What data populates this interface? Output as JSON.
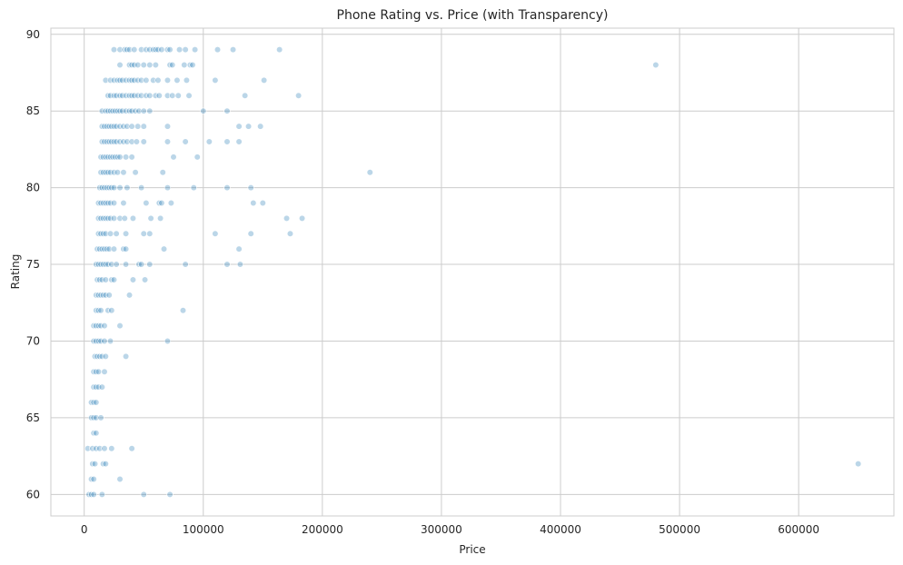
{
  "chart_data": {
    "type": "scatter",
    "title": "Phone Rating vs. Price (with Transparency)",
    "xlabel": "Price",
    "ylabel": "Rating",
    "xlim": [
      -28000,
      680000
    ],
    "ylim": [
      58.6,
      90.4
    ],
    "xticks": [
      0,
      100000,
      200000,
      300000,
      400000,
      500000,
      600000
    ],
    "xtick_labels": [
      "0",
      "100000",
      "200000",
      "300000",
      "400000",
      "500000",
      "600000"
    ],
    "yticks": [
      60,
      65,
      70,
      75,
      80,
      85,
      90
    ],
    "ytick_labels": [
      "60",
      "65",
      "70",
      "75",
      "80",
      "85",
      "90"
    ],
    "grid": true,
    "point_color": "#1f77b4",
    "point_alpha": 0.3,
    "points": [
      [
        25000,
        89
      ],
      [
        30000,
        89
      ],
      [
        34000,
        89
      ],
      [
        36000,
        89
      ],
      [
        38000,
        89
      ],
      [
        42000,
        89
      ],
      [
        48000,
        89
      ],
      [
        52000,
        89
      ],
      [
        55000,
        89
      ],
      [
        58000,
        89
      ],
      [
        60000,
        89
      ],
      [
        62000,
        89
      ],
      [
        65000,
        89
      ],
      [
        70000,
        89
      ],
      [
        72000,
        89
      ],
      [
        80000,
        89
      ],
      [
        85000,
        89
      ],
      [
        93000,
        89
      ],
      [
        112000,
        89
      ],
      [
        125000,
        89
      ],
      [
        164000,
        89
      ],
      [
        30000,
        88
      ],
      [
        38000,
        88
      ],
      [
        40000,
        88
      ],
      [
        42000,
        88
      ],
      [
        45000,
        88
      ],
      [
        50000,
        88
      ],
      [
        55000,
        88
      ],
      [
        60000,
        88
      ],
      [
        72000,
        88
      ],
      [
        74000,
        88
      ],
      [
        84000,
        88
      ],
      [
        89000,
        88
      ],
      [
        91000,
        88
      ],
      [
        480000,
        88
      ],
      [
        18000,
        87
      ],
      [
        22000,
        87
      ],
      [
        25000,
        87
      ],
      [
        28000,
        87
      ],
      [
        30000,
        87
      ],
      [
        32000,
        87
      ],
      [
        35000,
        87
      ],
      [
        38000,
        87
      ],
      [
        40000,
        87
      ],
      [
        42000,
        87
      ],
      [
        45000,
        87
      ],
      [
        48000,
        87
      ],
      [
        52000,
        87
      ],
      [
        58000,
        87
      ],
      [
        62000,
        87
      ],
      [
        70000,
        87
      ],
      [
        78000,
        87
      ],
      [
        86000,
        87
      ],
      [
        110000,
        87
      ],
      [
        151000,
        87
      ],
      [
        20000,
        86
      ],
      [
        22000,
        86
      ],
      [
        25000,
        86
      ],
      [
        27000,
        86
      ],
      [
        30000,
        86
      ],
      [
        32000,
        86
      ],
      [
        35000,
        86
      ],
      [
        38000,
        86
      ],
      [
        40000,
        86
      ],
      [
        42000,
        86
      ],
      [
        45000,
        86
      ],
      [
        48000,
        86
      ],
      [
        52000,
        86
      ],
      [
        55000,
        86
      ],
      [
        60000,
        86
      ],
      [
        63000,
        86
      ],
      [
        70000,
        86
      ],
      [
        74000,
        86
      ],
      [
        79000,
        86
      ],
      [
        88000,
        86
      ],
      [
        135000,
        86
      ],
      [
        180000,
        86
      ],
      [
        15000,
        85
      ],
      [
        18000,
        85
      ],
      [
        20000,
        85
      ],
      [
        22000,
        85
      ],
      [
        24000,
        85
      ],
      [
        26000,
        85
      ],
      [
        28000,
        85
      ],
      [
        30000,
        85
      ],
      [
        32000,
        85
      ],
      [
        35000,
        85
      ],
      [
        38000,
        85
      ],
      [
        40000,
        85
      ],
      [
        43000,
        85
      ],
      [
        46000,
        85
      ],
      [
        50000,
        85
      ],
      [
        55000,
        85
      ],
      [
        100000,
        85
      ],
      [
        120000,
        85
      ],
      [
        15000,
        84
      ],
      [
        17000,
        84
      ],
      [
        19000,
        84
      ],
      [
        21000,
        84
      ],
      [
        23000,
        84
      ],
      [
        25000,
        84
      ],
      [
        27000,
        84
      ],
      [
        30000,
        84
      ],
      [
        33000,
        84
      ],
      [
        36000,
        84
      ],
      [
        40000,
        84
      ],
      [
        45000,
        84
      ],
      [
        50000,
        84
      ],
      [
        70000,
        84
      ],
      [
        130000,
        84
      ],
      [
        138000,
        84
      ],
      [
        148000,
        84
      ],
      [
        15000,
        83
      ],
      [
        17000,
        83
      ],
      [
        19000,
        83
      ],
      [
        21000,
        83
      ],
      [
        23000,
        83
      ],
      [
        25000,
        83
      ],
      [
        27000,
        83
      ],
      [
        30000,
        83
      ],
      [
        33000,
        83
      ],
      [
        36000,
        83
      ],
      [
        40000,
        83
      ],
      [
        44000,
        83
      ],
      [
        50000,
        83
      ],
      [
        70000,
        83
      ],
      [
        85000,
        83
      ],
      [
        105000,
        83
      ],
      [
        120000,
        83
      ],
      [
        130000,
        83
      ],
      [
        14000,
        82
      ],
      [
        16000,
        82
      ],
      [
        18000,
        82
      ],
      [
        20000,
        82
      ],
      [
        22000,
        82
      ],
      [
        24000,
        82
      ],
      [
        26000,
        82
      ],
      [
        28000,
        82
      ],
      [
        30000,
        82
      ],
      [
        35000,
        82
      ],
      [
        40000,
        82
      ],
      [
        75000,
        82
      ],
      [
        95000,
        82
      ],
      [
        14000,
        81
      ],
      [
        16000,
        81
      ],
      [
        18000,
        81
      ],
      [
        20000,
        81
      ],
      [
        22000,
        81
      ],
      [
        25000,
        81
      ],
      [
        28000,
        81
      ],
      [
        33000,
        81
      ],
      [
        43000,
        81
      ],
      [
        66000,
        81
      ],
      [
        240000,
        81
      ],
      [
        13000,
        80
      ],
      [
        15000,
        80
      ],
      [
        17000,
        80
      ],
      [
        19000,
        80
      ],
      [
        21000,
        80
      ],
      [
        23000,
        80
      ],
      [
        25000,
        80
      ],
      [
        30000,
        80
      ],
      [
        36000,
        80
      ],
      [
        48000,
        80
      ],
      [
        70000,
        80
      ],
      [
        92000,
        80
      ],
      [
        120000,
        80
      ],
      [
        140000,
        80
      ],
      [
        12000,
        79
      ],
      [
        14000,
        79
      ],
      [
        16000,
        79
      ],
      [
        18000,
        79
      ],
      [
        20000,
        79
      ],
      [
        22000,
        79
      ],
      [
        25000,
        79
      ],
      [
        33000,
        79
      ],
      [
        52000,
        79
      ],
      [
        63000,
        79
      ],
      [
        65000,
        79
      ],
      [
        73000,
        79
      ],
      [
        142000,
        79
      ],
      [
        150000,
        79
      ],
      [
        12000,
        78
      ],
      [
        14000,
        78
      ],
      [
        16000,
        78
      ],
      [
        18000,
        78
      ],
      [
        20000,
        78
      ],
      [
        22000,
        78
      ],
      [
        25000,
        78
      ],
      [
        30000,
        78
      ],
      [
        34000,
        78
      ],
      [
        41000,
        78
      ],
      [
        56000,
        78
      ],
      [
        64000,
        78
      ],
      [
        170000,
        78
      ],
      [
        183000,
        78
      ],
      [
        12000,
        77
      ],
      [
        14000,
        77
      ],
      [
        16000,
        77
      ],
      [
        18000,
        77
      ],
      [
        22000,
        77
      ],
      [
        27000,
        77
      ],
      [
        35000,
        77
      ],
      [
        50000,
        77
      ],
      [
        55000,
        77
      ],
      [
        110000,
        77
      ],
      [
        140000,
        77
      ],
      [
        173000,
        77
      ],
      [
        11000,
        76
      ],
      [
        13000,
        76
      ],
      [
        15000,
        76
      ],
      [
        17000,
        76
      ],
      [
        19000,
        76
      ],
      [
        21000,
        76
      ],
      [
        25000,
        76
      ],
      [
        33000,
        76
      ],
      [
        35000,
        76
      ],
      [
        67000,
        76
      ],
      [
        130000,
        76
      ],
      [
        10000,
        75
      ],
      [
        12000,
        75
      ],
      [
        14000,
        75
      ],
      [
        16000,
        75
      ],
      [
        18000,
        75
      ],
      [
        20000,
        75
      ],
      [
        23000,
        75
      ],
      [
        27000,
        75
      ],
      [
        35000,
        75
      ],
      [
        46000,
        75
      ],
      [
        48000,
        75
      ],
      [
        55000,
        75
      ],
      [
        85000,
        75
      ],
      [
        120000,
        75
      ],
      [
        131000,
        75
      ],
      [
        11000,
        74
      ],
      [
        13000,
        74
      ],
      [
        15000,
        74
      ],
      [
        18000,
        74
      ],
      [
        23000,
        74
      ],
      [
        25000,
        74
      ],
      [
        41000,
        74
      ],
      [
        51000,
        74
      ],
      [
        10000,
        73
      ],
      [
        12000,
        73
      ],
      [
        14000,
        73
      ],
      [
        16000,
        73
      ],
      [
        18000,
        73
      ],
      [
        21000,
        73
      ],
      [
        38000,
        73
      ],
      [
        10000,
        72
      ],
      [
        12000,
        72
      ],
      [
        14000,
        72
      ],
      [
        20000,
        72
      ],
      [
        23000,
        72
      ],
      [
        83000,
        72
      ],
      [
        8000,
        71
      ],
      [
        10000,
        71
      ],
      [
        12000,
        71
      ],
      [
        14000,
        71
      ],
      [
        17000,
        71
      ],
      [
        30000,
        71
      ],
      [
        8000,
        70
      ],
      [
        10000,
        70
      ],
      [
        12000,
        70
      ],
      [
        14000,
        70
      ],
      [
        17000,
        70
      ],
      [
        22000,
        70
      ],
      [
        70000,
        70
      ],
      [
        9000,
        69
      ],
      [
        11000,
        69
      ],
      [
        13000,
        69
      ],
      [
        15000,
        69
      ],
      [
        18000,
        69
      ],
      [
        35000,
        69
      ],
      [
        8000,
        68
      ],
      [
        10000,
        68
      ],
      [
        12000,
        68
      ],
      [
        17000,
        68
      ],
      [
        8000,
        67
      ],
      [
        10000,
        67
      ],
      [
        12000,
        67
      ],
      [
        15000,
        67
      ],
      [
        6000,
        66
      ],
      [
        8000,
        66
      ],
      [
        10000,
        66
      ],
      [
        6000,
        65
      ],
      [
        8000,
        65
      ],
      [
        10000,
        65
      ],
      [
        14000,
        65
      ],
      [
        8000,
        64
      ],
      [
        10000,
        64
      ],
      [
        3000,
        63
      ],
      [
        7000,
        63
      ],
      [
        10000,
        63
      ],
      [
        13000,
        63
      ],
      [
        17000,
        63
      ],
      [
        23000,
        63
      ],
      [
        40000,
        63
      ],
      [
        7000,
        62
      ],
      [
        9000,
        62
      ],
      [
        16000,
        62
      ],
      [
        18000,
        62
      ],
      [
        650000,
        62
      ],
      [
        6000,
        61
      ],
      [
        8000,
        61
      ],
      [
        30000,
        61
      ],
      [
        4000,
        60
      ],
      [
        6000,
        60
      ],
      [
        8000,
        60
      ],
      [
        15000,
        60
      ],
      [
        50000,
        60
      ],
      [
        72000,
        60
      ]
    ]
  }
}
